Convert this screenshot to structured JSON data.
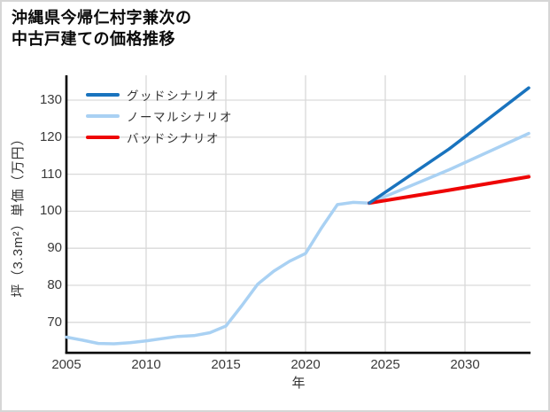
{
  "title": {
    "line1": "沖縄県今帰仁村字兼次の",
    "line2": "中古戸建ての価格推移"
  },
  "chart_data": {
    "type": "line",
    "title": "沖縄県今帰仁村字兼次の中古戸建ての価格推移",
    "xlabel": "年",
    "ylabel": "坪（3.3m²）単価（万円）",
    "x_ticks": [
      2005,
      2010,
      2015,
      2020,
      2025,
      2030
    ],
    "y_ticks": [
      70,
      80,
      90,
      100,
      110,
      120,
      130
    ],
    "xlim": [
      2005,
      2034.1
    ],
    "ylim": [
      61.5,
      134.5
    ],
    "grid": true,
    "legend_position": "top-left-inside",
    "legend": [
      {
        "label": "グッドシナリオ",
        "color": "#1973be"
      },
      {
        "label": "ノーマルシナリオ",
        "color": "#a9d1f3"
      },
      {
        "label": "バッドシナリオ",
        "color": "#ee0505"
      }
    ],
    "series": [
      {
        "name": "ノーマルシナリオ",
        "color": "#a9d1f3",
        "width": 3.5,
        "points": [
          [
            2005,
            66
          ],
          [
            2006,
            65.2
          ],
          [
            2007,
            64.3
          ],
          [
            2008,
            64.2
          ],
          [
            2009,
            64.5
          ],
          [
            2010,
            65
          ],
          [
            2011,
            65.6
          ],
          [
            2012,
            66.2
          ],
          [
            2013,
            66.4
          ],
          [
            2014,
            67.2
          ],
          [
            2015,
            69
          ],
          [
            2016,
            74.5
          ],
          [
            2017,
            80.3
          ],
          [
            2018,
            83.8
          ],
          [
            2019,
            86.5
          ],
          [
            2020,
            88.6
          ],
          [
            2021,
            95.5
          ],
          [
            2022,
            101.8
          ],
          [
            2023,
            102.4
          ],
          [
            2024,
            102.2
          ],
          [
            2029,
            111.2
          ],
          [
            2034,
            121
          ]
        ]
      },
      {
        "name": "バッドシナリオ",
        "color": "#ee0505",
        "width": 4,
        "points": [
          [
            2024,
            102.2
          ],
          [
            2029,
            105.7
          ],
          [
            2034,
            109.3
          ]
        ]
      },
      {
        "name": "グッドシナリオ",
        "color": "#1973be",
        "width": 3.5,
        "points": [
          [
            2024,
            102.2
          ],
          [
            2029,
            116.8
          ],
          [
            2034,
            133.3
          ]
        ]
      }
    ],
    "colors": {
      "grid": "#d9d9d9",
      "axis": "#000000",
      "tick_text": "#3a3a3a"
    }
  }
}
